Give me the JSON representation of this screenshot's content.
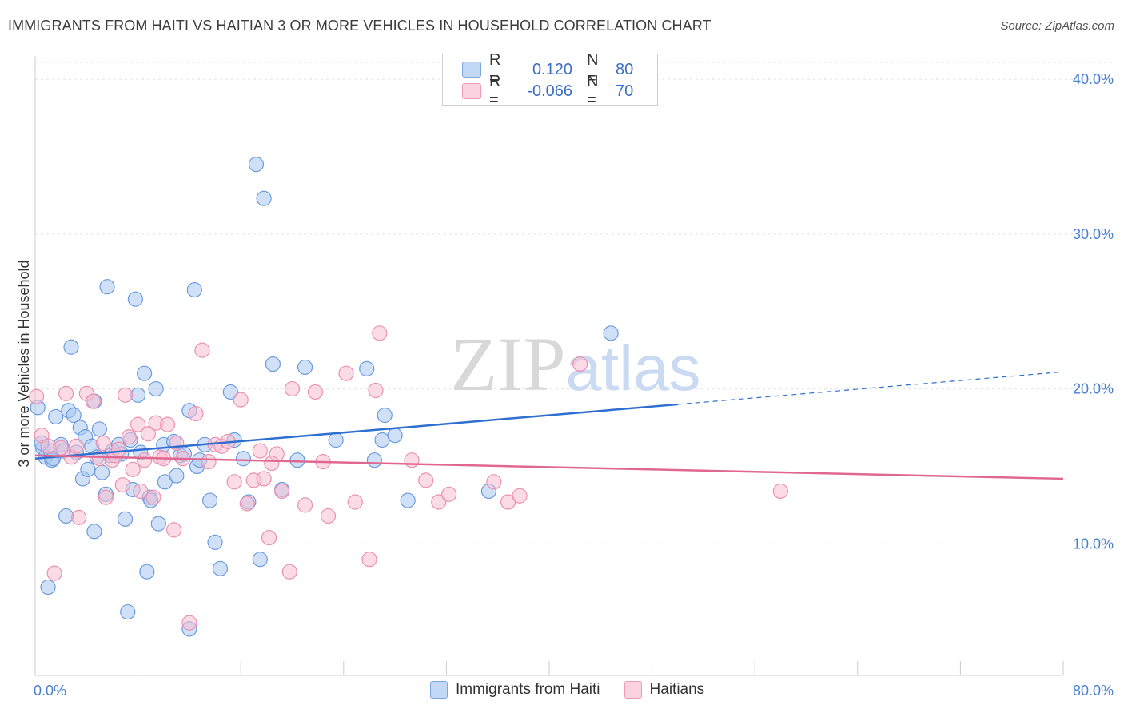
{
  "title": "IMMIGRANTS FROM HAITI VS HAITIAN 3 OR MORE VEHICLES IN HOUSEHOLD CORRELATION CHART",
  "source": "Source: ZipAtlas.com",
  "watermark": "ZIPatlas",
  "legend": {
    "series1": {
      "r_label": "R =",
      "r_value": "0.120",
      "n_label": "N =",
      "n_value": "80"
    },
    "series2": {
      "r_label": "R =",
      "r_value": "-0.066",
      "n_label": "N =",
      "n_value": "70"
    }
  },
  "colors": {
    "blue_fill": "#aac8f0",
    "blue_stroke": "#6b9be0",
    "blue_line": "#2f6fd0",
    "pink_fill": "#f8c0d2",
    "pink_stroke": "#ec90b0",
    "pink_line": "#e06890",
    "tick_text": "#4a7fd0"
  },
  "chart_data": {
    "type": "scatter",
    "title": "IMMIGRANTS FROM HAITI VS HAITIAN 3 OR MORE VEHICLES IN HOUSEHOLD CORRELATION CHART",
    "xlabel": "",
    "ylabel": "3 or more Vehicles in Household",
    "xlim": [
      0,
      80
    ],
    "ylim": [
      1.5,
      41.5
    ],
    "x_tick_labels": [
      "0.0%",
      "80.0%"
    ],
    "y_ticks": [
      10,
      20,
      30,
      40
    ],
    "y_tick_labels": [
      "10.0%",
      "20.0%",
      "30.0%",
      "40.0%"
    ],
    "series": [
      {
        "name": "Immigrants from Haiti",
        "trend": {
          "x0": 0,
          "y0": 15.5,
          "x1": 50,
          "y1": 19.0,
          "dash_x1": 80,
          "dash_y1": 21.1
        },
        "points": [
          [
            0.2,
            18.8
          ],
          [
            0.6,
            16.2
          ],
          [
            0.8,
            15.6
          ],
          [
            1.0,
            7.2
          ],
          [
            1.2,
            16.0
          ],
          [
            1.3,
            15.4
          ],
          [
            1.4,
            15.5
          ],
          [
            1.6,
            18.2
          ],
          [
            2.0,
            16.4
          ],
          [
            2.2,
            16.0
          ],
          [
            2.4,
            11.8
          ],
          [
            2.6,
            18.6
          ],
          [
            2.8,
            22.7
          ],
          [
            3.0,
            18.3
          ],
          [
            3.2,
            15.9
          ],
          [
            3.5,
            17.5
          ],
          [
            3.7,
            14.2
          ],
          [
            3.9,
            16.9
          ],
          [
            4.1,
            14.8
          ],
          [
            4.4,
            16.3
          ],
          [
            4.6,
            19.2
          ],
          [
            4.6,
            10.8
          ],
          [
            4.8,
            15.6
          ],
          [
            5.0,
            17.4
          ],
          [
            5.2,
            14.6
          ],
          [
            5.5,
            13.2
          ],
          [
            5.6,
            26.6
          ],
          [
            5.8,
            15.7
          ],
          [
            6.0,
            16.0
          ],
          [
            6.5,
            16.4
          ],
          [
            6.7,
            15.8
          ],
          [
            7.0,
            11.6
          ],
          [
            7.4,
            16.7
          ],
          [
            7.6,
            13.5
          ],
          [
            7.8,
            25.8
          ],
          [
            8.0,
            19.6
          ],
          [
            8.2,
            15.9
          ],
          [
            8.5,
            21.0
          ],
          [
            8.7,
            8.2
          ],
          [
            8.9,
            13.0
          ],
          [
            9.0,
            12.8
          ],
          [
            9.4,
            20.0
          ],
          [
            9.6,
            11.3
          ],
          [
            10.0,
            16.4
          ],
          [
            10.1,
            14.0
          ],
          [
            10.8,
            16.6
          ],
          [
            11.0,
            14.4
          ],
          [
            11.3,
            15.7
          ],
          [
            11.6,
            15.8
          ],
          [
            12.0,
            18.6
          ],
          [
            12.4,
            26.4
          ],
          [
            12.6,
            15.0
          ],
          [
            12.8,
            15.4
          ],
          [
            13.2,
            16.4
          ],
          [
            13.6,
            12.8
          ],
          [
            14.0,
            10.1
          ],
          [
            14.4,
            8.4
          ],
          [
            15.2,
            19.8
          ],
          [
            15.5,
            16.7
          ],
          [
            16.2,
            15.5
          ],
          [
            16.6,
            12.7
          ],
          [
            17.2,
            34.5
          ],
          [
            17.8,
            32.3
          ],
          [
            18.5,
            21.6
          ],
          [
            19.2,
            13.5
          ],
          [
            20.4,
            15.4
          ],
          [
            21.0,
            21.4
          ],
          [
            23.4,
            16.7
          ],
          [
            25.8,
            21.3
          ],
          [
            26.4,
            15.4
          ],
          [
            27.0,
            16.7
          ],
          [
            27.2,
            18.3
          ],
          [
            28.0,
            17.0
          ],
          [
            29.0,
            12.8
          ],
          [
            35.3,
            13.4
          ],
          [
            44.8,
            23.6
          ],
          [
            7.2,
            5.6
          ],
          [
            12.0,
            4.5
          ],
          [
            17.5,
            9.0
          ],
          [
            0.5,
            16.5
          ]
        ]
      },
      {
        "name": "Haitians",
        "trend": {
          "x0": 0,
          "y0": 15.7,
          "x1": 80,
          "y1": 14.2
        },
        "points": [
          [
            0.1,
            19.5
          ],
          [
            0.5,
            17.0
          ],
          [
            1.0,
            16.3
          ],
          [
            1.5,
            8.1
          ],
          [
            2.0,
            16.2
          ],
          [
            2.4,
            19.7
          ],
          [
            2.8,
            15.6
          ],
          [
            3.2,
            16.3
          ],
          [
            3.4,
            11.7
          ],
          [
            4.0,
            19.7
          ],
          [
            4.5,
            19.2
          ],
          [
            5.0,
            15.5
          ],
          [
            5.3,
            16.5
          ],
          [
            5.5,
            13.0
          ],
          [
            6.0,
            15.4
          ],
          [
            6.2,
            15.7
          ],
          [
            6.5,
            16.1
          ],
          [
            6.8,
            13.8
          ],
          [
            7.0,
            19.6
          ],
          [
            7.3,
            16.9
          ],
          [
            7.6,
            14.8
          ],
          [
            8.0,
            17.7
          ],
          [
            8.2,
            13.4
          ],
          [
            8.5,
            15.4
          ],
          [
            8.8,
            17.1
          ],
          [
            9.2,
            13.0
          ],
          [
            9.4,
            17.8
          ],
          [
            9.7,
            15.6
          ],
          [
            10.0,
            15.5
          ],
          [
            10.3,
            17.7
          ],
          [
            10.8,
            10.9
          ],
          [
            11.0,
            16.5
          ],
          [
            11.5,
            15.5
          ],
          [
            12.0,
            4.9
          ],
          [
            12.5,
            18.4
          ],
          [
            13.0,
            22.5
          ],
          [
            13.5,
            15.3
          ],
          [
            14.0,
            16.4
          ],
          [
            14.5,
            16.3
          ],
          [
            15.0,
            16.6
          ],
          [
            15.5,
            14.0
          ],
          [
            16.0,
            19.3
          ],
          [
            16.5,
            12.6
          ],
          [
            17.0,
            14.1
          ],
          [
            17.5,
            16.0
          ],
          [
            17.8,
            14.2
          ],
          [
            18.2,
            10.4
          ],
          [
            18.8,
            15.8
          ],
          [
            19.2,
            13.4
          ],
          [
            19.8,
            8.2
          ],
          [
            20.0,
            20.0
          ],
          [
            21.0,
            12.5
          ],
          [
            21.8,
            19.8
          ],
          [
            22.4,
            15.3
          ],
          [
            22.8,
            11.8
          ],
          [
            24.2,
            21.0
          ],
          [
            24.9,
            12.7
          ],
          [
            26.0,
            9.0
          ],
          [
            26.5,
            19.9
          ],
          [
            26.8,
            23.6
          ],
          [
            29.3,
            15.4
          ],
          [
            30.4,
            14.1
          ],
          [
            31.4,
            12.7
          ],
          [
            32.2,
            13.2
          ],
          [
            35.7,
            14.0
          ],
          [
            36.8,
            12.7
          ],
          [
            37.7,
            13.1
          ],
          [
            42.4,
            21.6
          ],
          [
            58.0,
            13.4
          ],
          [
            18.4,
            15.2
          ]
        ]
      }
    ]
  },
  "bottom_legend": [
    "Immigrants from Haiti",
    "Haitians"
  ]
}
